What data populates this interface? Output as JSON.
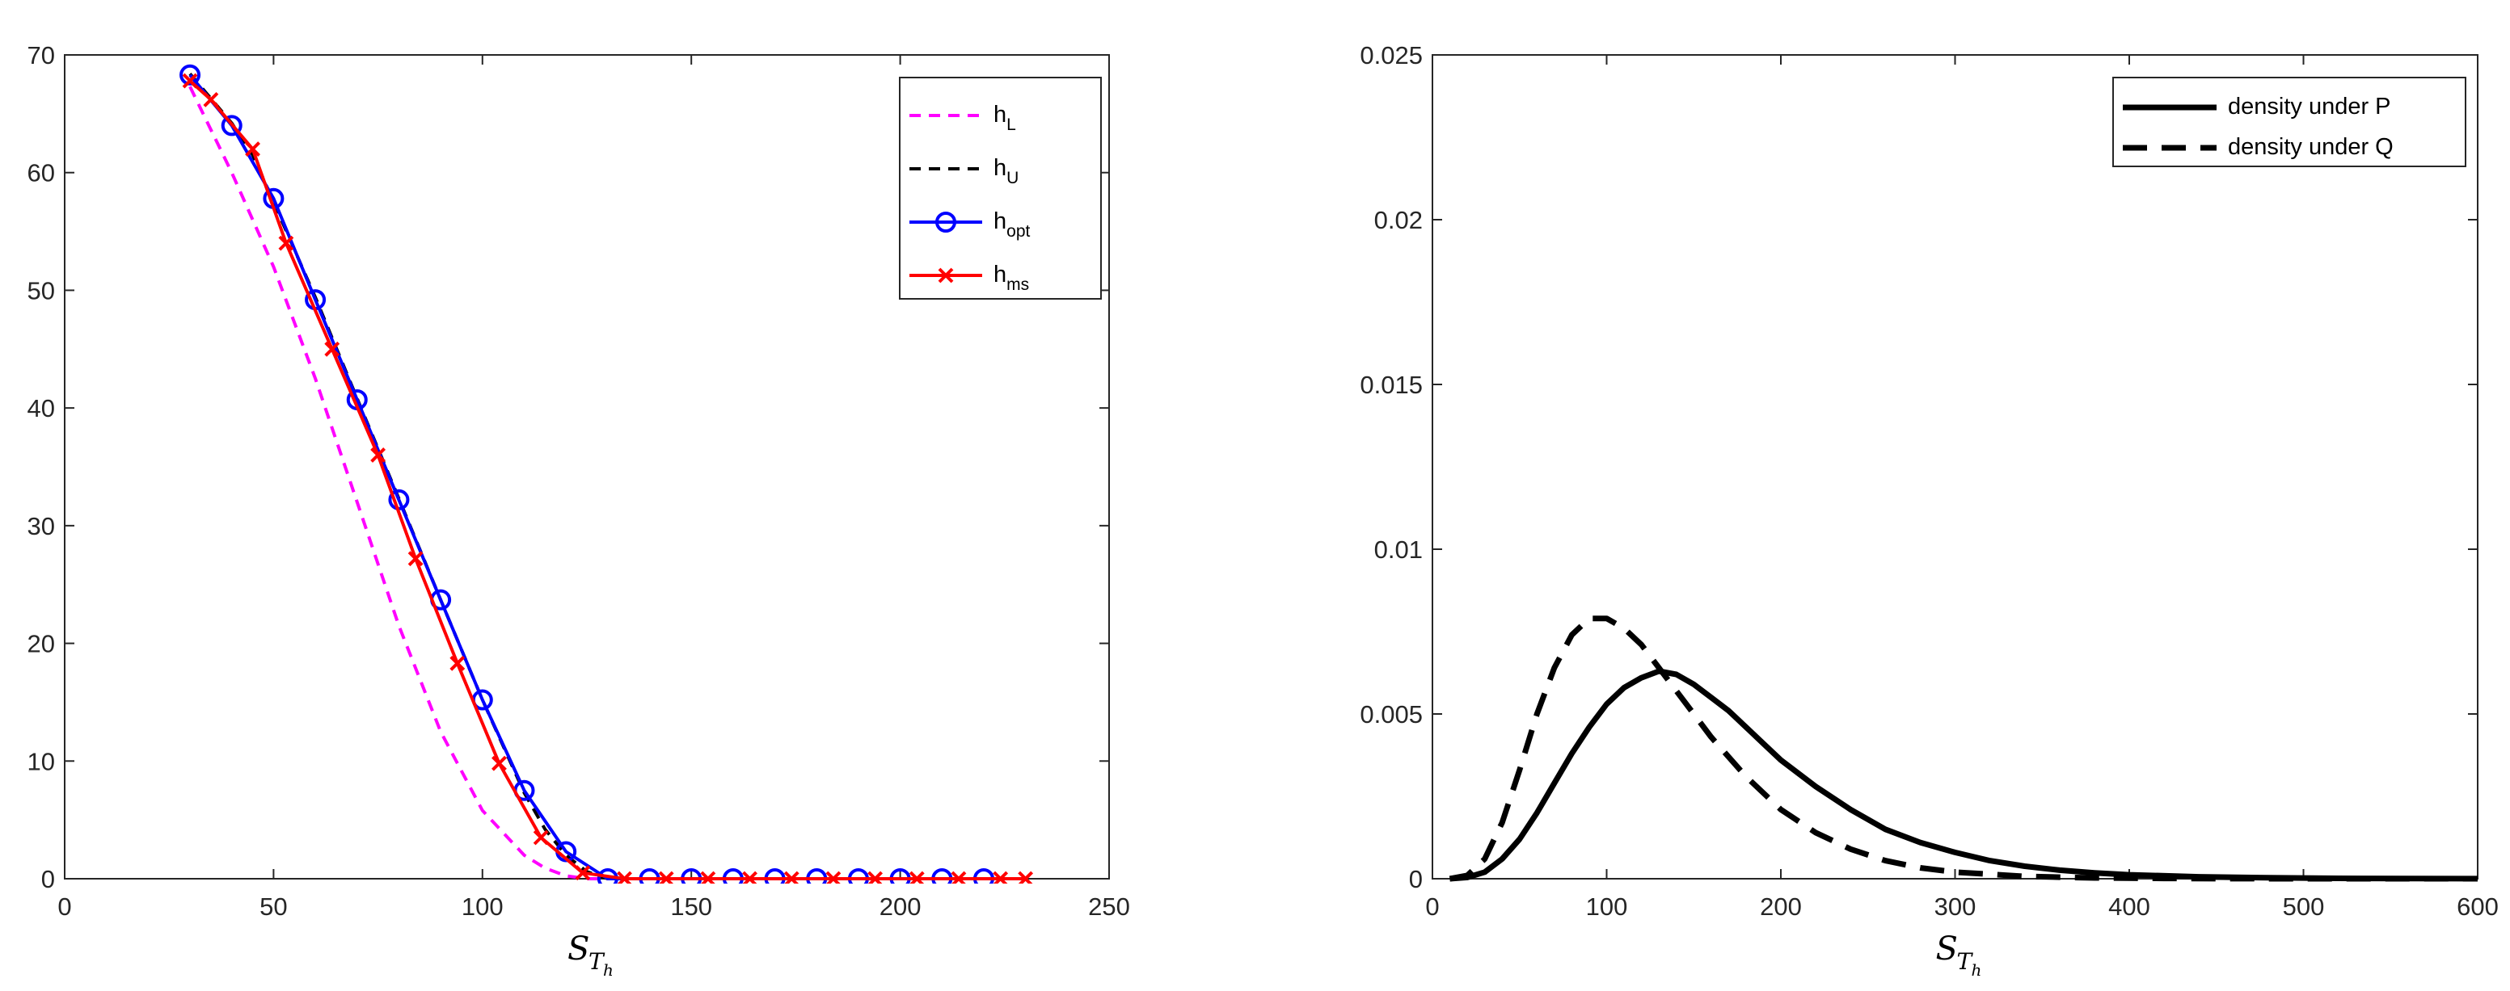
{
  "chart_data": [
    {
      "type": "line",
      "xlabel": "S",
      "xlabel_sub": "T",
      "xlabel_subsub": "h",
      "xlim": [
        0,
        250
      ],
      "ylim": [
        0,
        70
      ],
      "xticks": [
        "0",
        "50",
        "100",
        "150",
        "200",
        "250"
      ],
      "yticks": [
        "0",
        "10",
        "20",
        "30",
        "40",
        "50",
        "60",
        "70"
      ],
      "legend_position": "top-right",
      "series": [
        {
          "name": "h_L",
          "label_main": "h",
          "label_sub": "L",
          "color": "#ff00ff",
          "style": "dashed",
          "marker": "none",
          "x": [
            30,
            40,
            50,
            60,
            70,
            80,
            90,
            100,
            110,
            115,
            120,
            125,
            130,
            220
          ],
          "y": [
            67.3,
            60.0,
            52.0,
            42.5,
            32.0,
            21.5,
            12.5,
            5.8,
            2.0,
            0.9,
            0.25,
            0.0,
            0.0,
            0.0
          ]
        },
        {
          "name": "h_U",
          "label_main": "h",
          "label_sub": "U",
          "color": "#000000",
          "style": "dashed",
          "marker": "none",
          "x": [
            30,
            40,
            45,
            50,
            60,
            70,
            80,
            90,
            100,
            110,
            115,
            120,
            125,
            130,
            220
          ],
          "y": [
            68.4,
            64.2,
            61.5,
            57.5,
            49.4,
            40.8,
            32.3,
            23.7,
            15.2,
            7.3,
            4.2,
            2.0,
            0.6,
            0.0,
            0.0
          ]
        },
        {
          "name": "h_opt",
          "label_main": "h",
          "label_sub": "opt",
          "color": "#0000ff",
          "style": "solid",
          "marker": "circle",
          "x": [
            30,
            40,
            50,
            60,
            70,
            80,
            90,
            100,
            110,
            120,
            130,
            140,
            150,
            160,
            170,
            180,
            190,
            200,
            210,
            220
          ],
          "y": [
            68.3,
            64.0,
            57.8,
            49.2,
            40.7,
            32.2,
            23.7,
            15.2,
            7.5,
            2.3,
            0.0,
            0.0,
            0.0,
            0.0,
            0.0,
            0.0,
            0.0,
            0.0,
            0.0,
            0.0
          ]
        },
        {
          "name": "h_ms",
          "label_main": "h",
          "label_sub": "ms",
          "color": "#ff0000",
          "style": "solid",
          "marker": "x",
          "x": [
            30,
            35,
            45,
            53,
            64,
            75,
            84,
            94,
            104,
            114,
            124,
            134,
            144,
            154,
            164,
            174,
            184,
            194,
            204,
            214,
            224,
            230
          ],
          "y": [
            67.8,
            66.2,
            62.0,
            54.0,
            45.0,
            36.0,
            27.2,
            18.3,
            9.8,
            3.5,
            0.5,
            0.0,
            0.0,
            0.0,
            0.0,
            0.0,
            0.0,
            0.0,
            0.0,
            0.0,
            0.0,
            0.0
          ]
        }
      ]
    },
    {
      "type": "line",
      "xlabel": "S",
      "xlabel_sub": "T",
      "xlabel_subsub": "h",
      "xlim": [
        0,
        600
      ],
      "ylim": [
        0,
        0.025
      ],
      "xticks": [
        "0",
        "100",
        "200",
        "300",
        "400",
        "500",
        "600"
      ],
      "yticks": [
        "0",
        "0.005",
        "0.01",
        "0.015",
        "0.02",
        "0.025"
      ],
      "legend_position": "top-right",
      "series": [
        {
          "name": "density under P",
          "color": "#000000",
          "style": "solid",
          "x": [
            10,
            20,
            30,
            40,
            50,
            60,
            70,
            80,
            90,
            100,
            110,
            120,
            130,
            140,
            150,
            160,
            170,
            180,
            190,
            200,
            220,
            240,
            260,
            280,
            300,
            320,
            340,
            360,
            380,
            400,
            440,
            480,
            520,
            560,
            600
          ],
          "y": [
            0.0,
            4e-05,
            0.0002,
            0.0006,
            0.0012,
            0.002,
            0.0029,
            0.0038,
            0.0046,
            0.0053,
            0.0058,
            0.0061,
            0.0063,
            0.0062,
            0.0059,
            0.0055,
            0.0051,
            0.0046,
            0.0041,
            0.0036,
            0.0028,
            0.0021,
            0.0015,
            0.0011,
            0.0008,
            0.00055,
            0.00038,
            0.00026,
            0.00018,
            0.00012,
            6e-05,
            3e-05,
            1.3e-05,
            6e-06,
            3e-06
          ]
        },
        {
          "name": "density under Q",
          "color": "#000000",
          "style": "dashed",
          "x": [
            10,
            20,
            30,
            40,
            50,
            60,
            70,
            80,
            90,
            100,
            110,
            120,
            130,
            140,
            150,
            160,
            180,
            200,
            220,
            240,
            260,
            280,
            300,
            340,
            380,
            420,
            460,
            500,
            600
          ],
          "y": [
            0.0,
            0.0001,
            0.0006,
            0.0017,
            0.0033,
            0.005,
            0.0064,
            0.0074,
            0.0079,
            0.0079,
            0.0076,
            0.0071,
            0.0064,
            0.0057,
            0.005,
            0.0043,
            0.0031,
            0.0021,
            0.0014,
            0.0009,
            0.00055,
            0.00033,
            0.0002,
            7e-05,
            2.5e-05,
            9e-06,
            3e-06,
            1e-06,
            0.0
          ]
        }
      ]
    }
  ]
}
